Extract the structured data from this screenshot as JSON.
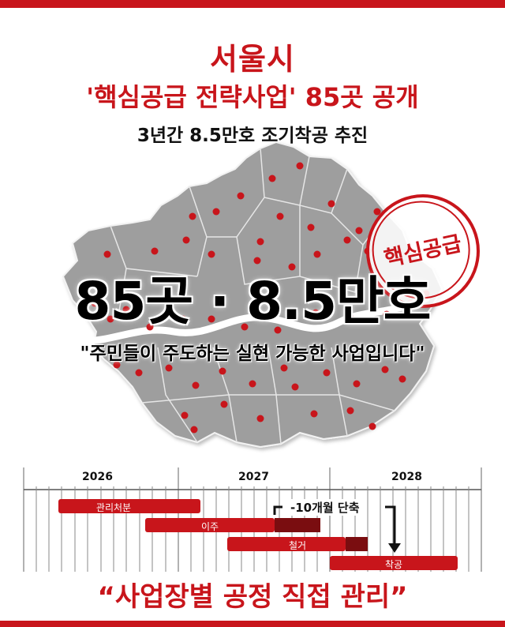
{
  "header": {
    "title_line1": "서울시",
    "title_line2": "'핵심공급 전략사업' 85곳 공개",
    "subtitle": "3년간 8.5만호 조기착공 추진"
  },
  "map": {
    "big_figure": "85곳 · 8.5만호",
    "quote": "\"주민들이 주도하는 실현 가능한 사업입니다\"",
    "stamp_text": "핵심공급"
  },
  "timeline": {
    "years": [
      "2026",
      "2027",
      "2028"
    ],
    "phases": [
      {
        "label": "관리처분"
      },
      {
        "label": "이주"
      },
      {
        "label": "철거"
      },
      {
        "label": "착공"
      }
    ],
    "shorten_label": "-10개월 단축"
  },
  "footer": {
    "quote": "“사업장별 공정 직접 관리”"
  },
  "colors": {
    "accent": "#c8151b",
    "map_fill": "#9e9e9e",
    "river": "#ffffff"
  }
}
